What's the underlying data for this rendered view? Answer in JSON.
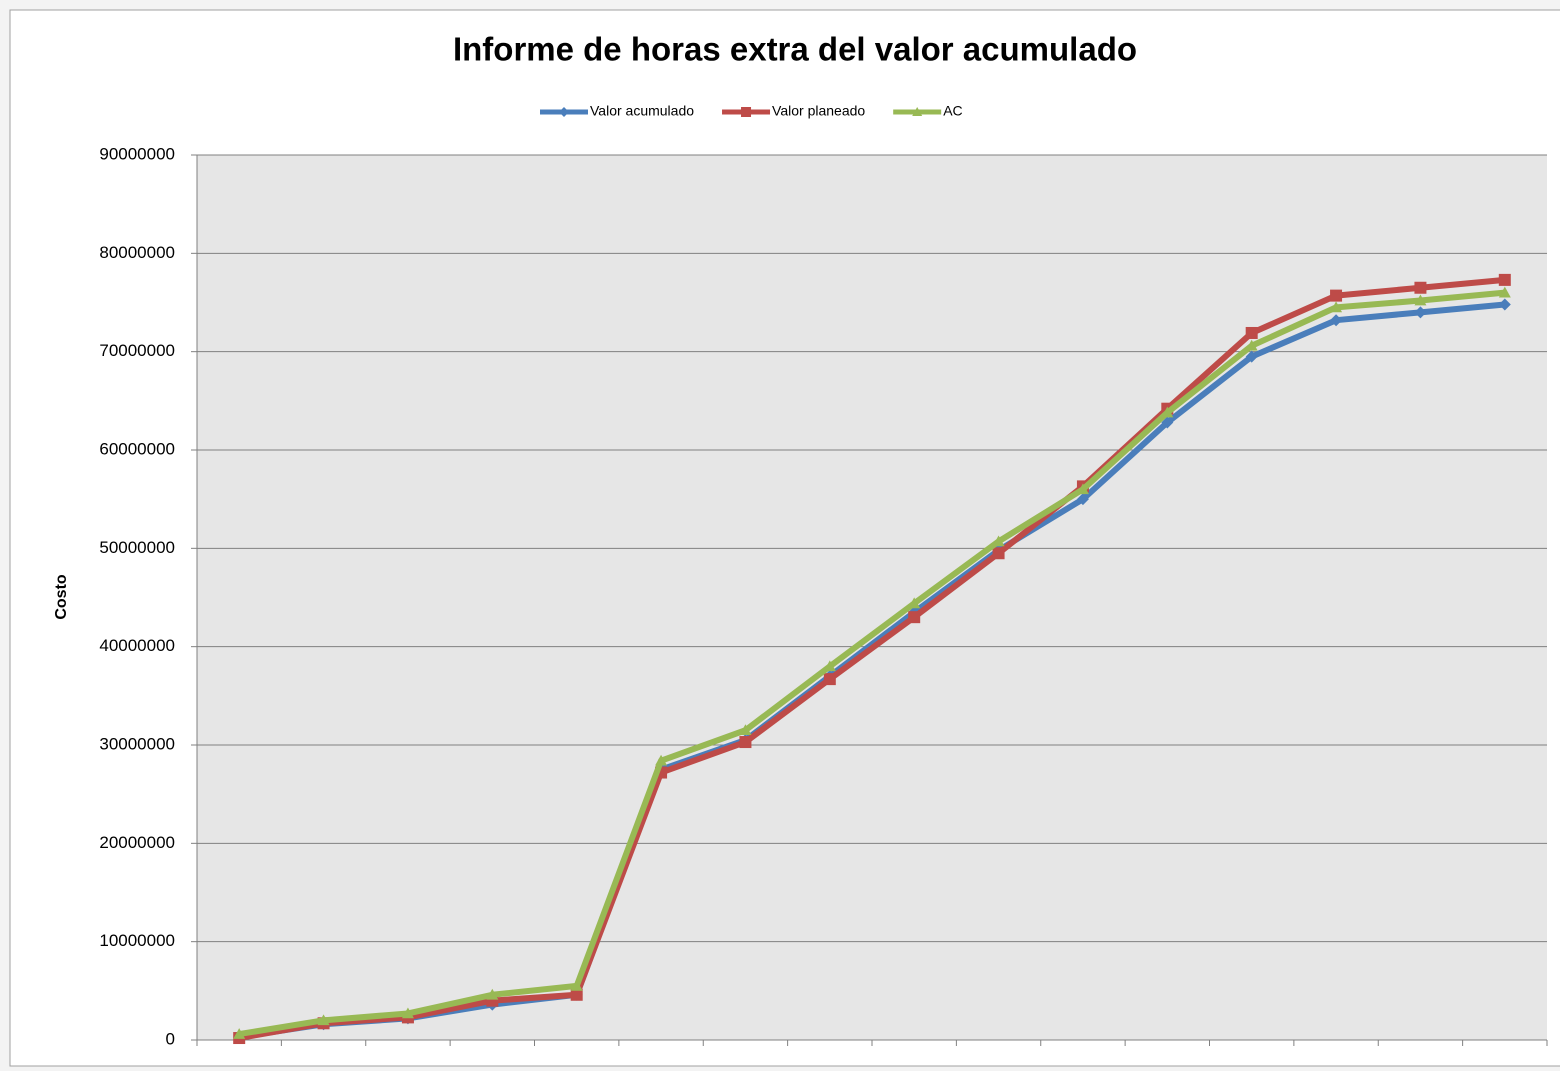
{
  "chart_data": {
    "type": "line",
    "title": "Informe de horas extra del valor acumulado",
    "y_label": "Costo",
    "categories": [
      null,
      null,
      null,
      null,
      null,
      null,
      null,
      null,
      null,
      null,
      null,
      null,
      null,
      null,
      null,
      null
    ],
    "series": [
      {
        "name": "Valor acumulado",
        "color": "#4a7ebb",
        "marker": "diamond",
        "values": [
          300000,
          1600000,
          2200000,
          3600000,
          4600000,
          27500000,
          30500000,
          37000000,
          43500000,
          49800000,
          55000000,
          62800000,
          69500000,
          73200000,
          74000000,
          74800000
        ]
      },
      {
        "name": "Valor planeado",
        "color": "#be4b48",
        "marker": "square",
        "values": [
          200000,
          1700000,
          2300000,
          4000000,
          4600000,
          27200000,
          30300000,
          36700000,
          43000000,
          49500000,
          56300000,
          64200000,
          71900000,
          75700000,
          76500000,
          77300000
        ]
      },
      {
        "name": "AC",
        "color": "#98b954",
        "marker": "triangle",
        "values": [
          600000,
          2000000,
          2700000,
          4600000,
          5500000,
          28400000,
          31500000,
          38000000,
          44400000,
          50700000,
          56000000,
          63800000,
          70600000,
          74500000,
          75200000,
          76000000
        ]
      }
    ],
    "ylim": [
      0,
      90000000
    ],
    "yticks": [
      0,
      10000000,
      20000000,
      30000000,
      40000000,
      50000000,
      60000000,
      70000000,
      80000000,
      90000000
    ],
    "grid": true,
    "legend": "top"
  }
}
